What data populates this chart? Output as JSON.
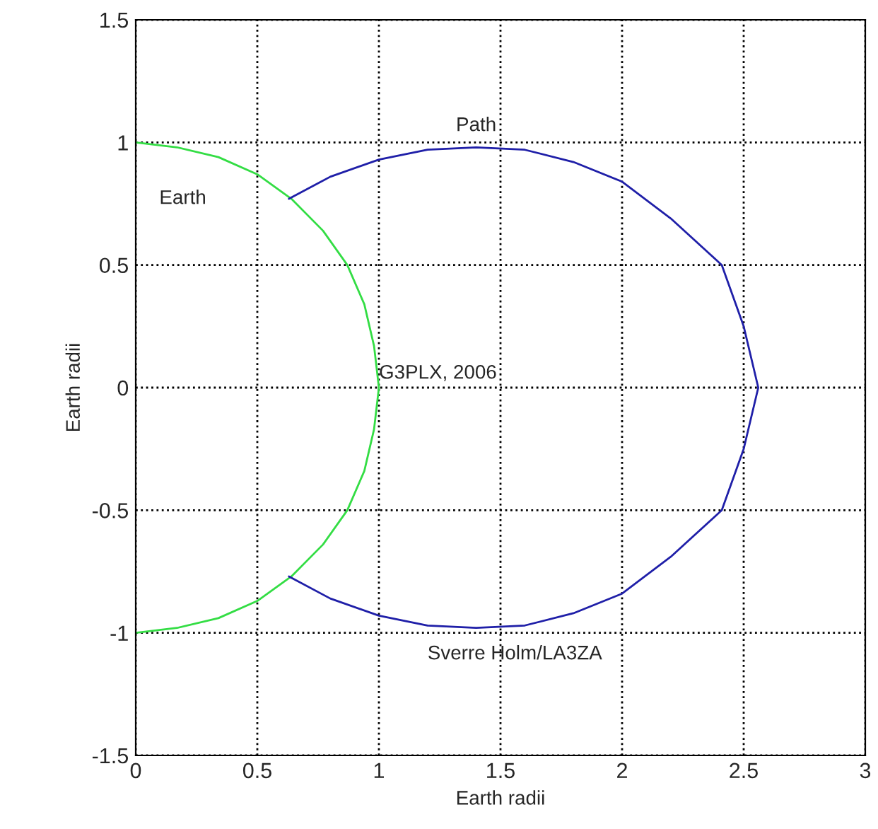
{
  "chart_data": {
    "type": "line",
    "xlabel": "Earth radii",
    "ylabel": "Earth radii",
    "series": [
      {
        "name": "Earth",
        "color": "#33dd44",
        "x": [
          0,
          0.17,
          0.34,
          0.5,
          0.64,
          0.77,
          0.87,
          0.94,
          0.98,
          1,
          0.98,
          0.94,
          0.87,
          0.77,
          0.64,
          0.5,
          0.34,
          0.17,
          0
        ],
        "values": [
          1,
          0.98,
          0.94,
          0.87,
          0.77,
          0.64,
          0.5,
          0.34,
          0.17,
          0,
          -0.17,
          -0.34,
          -0.5,
          -0.64,
          -0.77,
          -0.87,
          -0.94,
          -0.98,
          -1
        ]
      },
      {
        "name": "Path",
        "color": "#1f1fa8",
        "x": [
          0.63,
          0.8,
          1.0,
          1.2,
          1.4,
          1.6,
          1.8,
          2.0,
          2.2,
          2.41,
          2.5,
          2.56,
          2.5,
          2.41,
          2.2,
          2.0,
          1.8,
          1.6,
          1.4,
          1.2,
          1.0,
          0.8,
          0.63
        ],
        "values": [
          0.77,
          0.86,
          0.93,
          0.97,
          0.98,
          0.97,
          0.92,
          0.84,
          0.69,
          0.5,
          0.25,
          0,
          -0.25,
          -0.5,
          -0.69,
          -0.84,
          -0.92,
          -0.97,
          -0.98,
          -0.97,
          -0.93,
          -0.86,
          -0.77
        ]
      }
    ],
    "annotations": [
      "G3PLX, 2006",
      "Sverre Holm/LA3ZA"
    ],
    "xlim": [
      0,
      3
    ],
    "xticks": [
      0,
      0.5,
      1,
      1.5,
      2,
      2.5,
      3
    ],
    "ylim": [
      -1.5,
      1.5
    ],
    "yticks": [
      -1.5,
      -1,
      -0.5,
      0,
      0.5,
      1,
      1.5
    ],
    "grid": true,
    "marker": "none",
    "line_style": "solid"
  }
}
